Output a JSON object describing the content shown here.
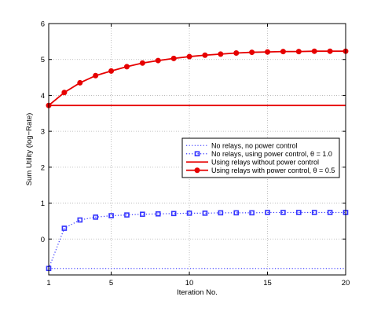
{
  "chart_data": {
    "type": "line",
    "xlabel": "Iteration No.",
    "ylabel": "Sum Utility (log−Rate)",
    "xlim": [
      1,
      20
    ],
    "ylim": [
      -1,
      6
    ],
    "x_ticks": [
      1,
      5,
      10,
      15,
      20
    ],
    "y_ticks": [
      -1,
      0,
      1,
      2,
      3,
      4,
      5,
      6
    ],
    "x_tick_labels": [
      "1",
      "5",
      "10",
      "15",
      "20"
    ],
    "y_tick_labels": [
      "",
      "0",
      "1",
      "2",
      "3",
      "4",
      "5",
      "6"
    ],
    "grid": true,
    "legend_position": "right-center",
    "series": [
      {
        "name": "No relays, no power control",
        "style": "dotted",
        "marker": "none",
        "color": "#4a4aff",
        "x": [
          1,
          20
        ],
        "y": [
          -0.82,
          -0.82
        ]
      },
      {
        "name": "No relays, using power control, θ = 1.0",
        "style": "dotted",
        "marker": "square",
        "color": "#3333ff",
        "x": [
          1,
          2,
          3,
          4,
          5,
          6,
          7,
          8,
          9,
          10,
          11,
          12,
          13,
          14,
          15,
          16,
          17,
          18,
          19,
          20
        ],
        "y": [
          -0.82,
          0.3,
          0.53,
          0.61,
          0.65,
          0.67,
          0.69,
          0.7,
          0.71,
          0.72,
          0.72,
          0.73,
          0.73,
          0.73,
          0.74,
          0.74,
          0.74,
          0.74,
          0.74,
          0.74
        ]
      },
      {
        "name": "Using relays without power control",
        "style": "solid",
        "marker": "none",
        "color": "#e60000",
        "x": [
          1,
          20
        ],
        "y": [
          3.72,
          3.72
        ]
      },
      {
        "name": "Using relays with power control, θ = 0.5",
        "style": "solid",
        "marker": "circle",
        "color": "#e60000",
        "x": [
          1,
          2,
          3,
          4,
          5,
          6,
          7,
          8,
          9,
          10,
          11,
          12,
          13,
          14,
          15,
          16,
          17,
          18,
          19,
          20
        ],
        "y": [
          3.72,
          4.08,
          4.35,
          4.55,
          4.68,
          4.8,
          4.9,
          4.97,
          5.03,
          5.08,
          5.12,
          5.15,
          5.18,
          5.2,
          5.21,
          5.22,
          5.22,
          5.23,
          5.23,
          5.23
        ]
      }
    ]
  }
}
